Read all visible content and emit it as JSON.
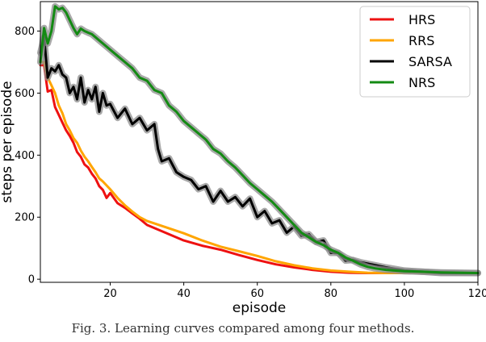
{
  "caption": "Fig. 3.  Learning curves compared among four methods.",
  "chart_data": {
    "type": "line",
    "title": "",
    "xlabel": "episode",
    "ylabel": "steps per episode",
    "xlim": [
      1,
      120
    ],
    "ylim": [
      -10,
      895
    ],
    "xticks": [
      20,
      40,
      60,
      80,
      100,
      120
    ],
    "yticks": [
      0,
      200,
      400,
      600,
      800
    ],
    "grid": false,
    "legend_position": "upper right",
    "series": [
      {
        "name": "HRS",
        "color": "#ee1111",
        "x": [
          1,
          2,
          3,
          4,
          5,
          6,
          7,
          8,
          9,
          10,
          11,
          12,
          13,
          14,
          15,
          16,
          17,
          18,
          19,
          20,
          22,
          24,
          26,
          28,
          30,
          35,
          40,
          45,
          50,
          55,
          60,
          65,
          70,
          75,
          80,
          85,
          90,
          95,
          100,
          105,
          110,
          115,
          120
        ],
        "y": [
          690,
          690,
          605,
          610,
          555,
          530,
          505,
          480,
          462,
          440,
          410,
          395,
          370,
          360,
          340,
          325,
          300,
          288,
          262,
          278,
          245,
          230,
          212,
          195,
          175,
          150,
          125,
          108,
          95,
          78,
          62,
          48,
          38,
          30,
          24,
          21,
          20,
          20,
          20,
          20,
          20,
          20,
          20
        ]
      },
      {
        "name": "RRS",
        "color": "#ffa500",
        "x": [
          1,
          2,
          3,
          4,
          5,
          6,
          7,
          8,
          9,
          10,
          11,
          12,
          13,
          14,
          15,
          16,
          17,
          18,
          20,
          22,
          24,
          26,
          28,
          30,
          35,
          40,
          45,
          50,
          55,
          60,
          65,
          70,
          75,
          80,
          85,
          90,
          95,
          100,
          105,
          110,
          115,
          120
        ],
        "y": [
          700,
          700,
          650,
          625,
          600,
          560,
          535,
          500,
          480,
          455,
          440,
          415,
          395,
          380,
          362,
          345,
          325,
          315,
          290,
          262,
          238,
          218,
          200,
          188,
          168,
          148,
          125,
          105,
          90,
          75,
          58,
          45,
          35,
          28,
          24,
          21,
          20,
          20,
          20,
          20,
          20,
          20
        ]
      },
      {
        "name": "SARSA",
        "color": "#000000",
        "x": [
          1,
          2,
          3,
          4,
          5,
          6,
          7,
          8,
          9,
          10,
          11,
          12,
          13,
          14,
          15,
          16,
          17,
          18,
          19,
          20,
          22,
          24,
          26,
          28,
          30,
          32,
          33,
          34,
          36,
          38,
          40,
          42,
          44,
          46,
          48,
          50,
          52,
          54,
          56,
          58,
          60,
          62,
          64,
          66,
          68,
          70,
          72,
          74,
          76,
          78,
          80,
          82,
          84,
          86,
          88,
          90,
          95,
          100,
          105,
          110,
          115,
          120
        ],
        "y": [
          730,
          780,
          650,
          680,
          670,
          690,
          660,
          650,
          600,
          620,
          580,
          650,
          570,
          610,
          580,
          620,
          540,
          600,
          560,
          565,
          520,
          550,
          500,
          520,
          480,
          500,
          420,
          380,
          390,
          345,
          330,
          320,
          290,
          300,
          250,
          285,
          250,
          265,
          235,
          260,
          200,
          220,
          180,
          190,
          150,
          170,
          140,
          145,
          120,
          125,
          85,
          85,
          60,
          62,
          55,
          50,
          38,
          28,
          24,
          20,
          20,
          20
        ]
      },
      {
        "name": "NRS",
        "color": "#138a13",
        "x": [
          1,
          2,
          3,
          4,
          5,
          6,
          7,
          8,
          9,
          10,
          11,
          12,
          13,
          14,
          15,
          16,
          18,
          20,
          22,
          24,
          26,
          28,
          30,
          32,
          34,
          36,
          38,
          40,
          42,
          44,
          46,
          48,
          50,
          52,
          54,
          56,
          58,
          60,
          62,
          64,
          66,
          68,
          70,
          72,
          74,
          76,
          78,
          80,
          82,
          84,
          86,
          88,
          90,
          92,
          95,
          100,
          105,
          110,
          115,
          120
        ],
        "y": [
          700,
          810,
          760,
          800,
          880,
          870,
          875,
          860,
          835,
          810,
          790,
          808,
          800,
          795,
          790,
          780,
          760,
          740,
          720,
          700,
          680,
          650,
          640,
          610,
          600,
          560,
          540,
          510,
          490,
          470,
          450,
          420,
          405,
          380,
          360,
          335,
          310,
          290,
          270,
          250,
          225,
          200,
          175,
          150,
          135,
          120,
          110,
          95,
          85,
          70,
          60,
          48,
          40,
          35,
          30,
          26,
          24,
          22,
          21,
          20
        ]
      }
    ]
  }
}
